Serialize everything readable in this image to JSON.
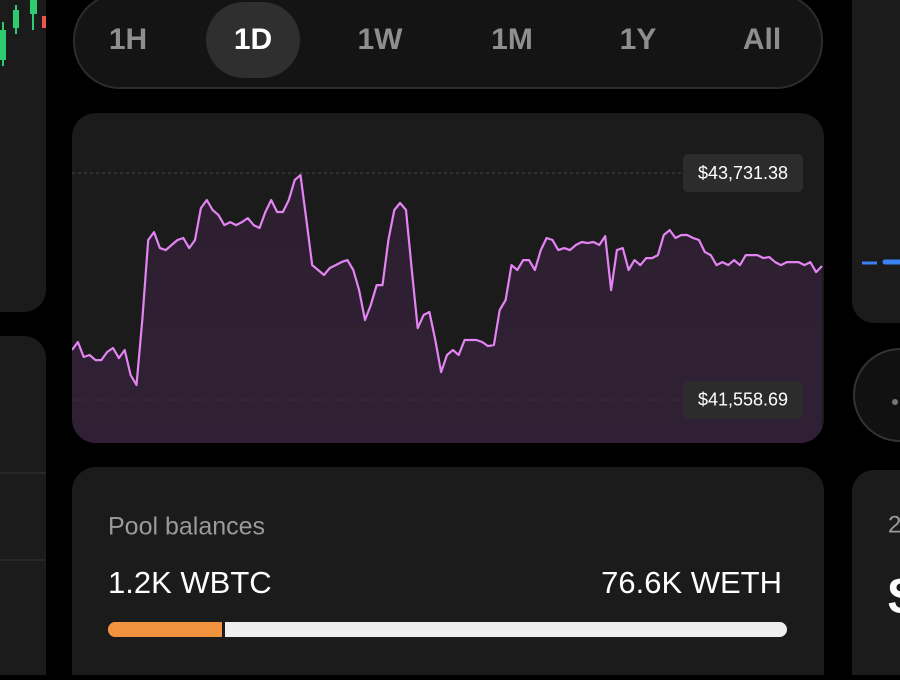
{
  "tabs": {
    "items": [
      "1H",
      "1D",
      "1W",
      "1M",
      "1Y",
      "All"
    ],
    "selected": 1
  },
  "chart_data": {
    "type": "line",
    "color": "#e384f2",
    "values": [
      42037,
      42114,
      41970,
      41989,
      41941,
      41941,
      42018,
      42056,
      41960,
      42037,
      41798,
      41702,
      42324,
      43090,
      43166,
      43013,
      42994,
      43042,
      43090,
      43109,
      43013,
      43090,
      43396,
      43473,
      43377,
      43329,
      43233,
      43262,
      43233,
      43262,
      43300,
      43233,
      43205,
      43358,
      43473,
      43358,
      43358,
      43473,
      43664,
      43712,
      43281,
      42850,
      42803,
      42755,
      42822,
      42850,
      42879,
      42898,
      42803,
      42611,
      42324,
      42468,
      42659,
      42659,
      43090,
      43377,
      43444,
      43377,
      42803,
      42247,
      42372,
      42401,
      42133,
      41826,
      41989,
      42037,
      41989,
      42133,
      42133,
      42133,
      42114,
      42075,
      42085,
      42420,
      42515,
      42850,
      42803,
      42898,
      42898,
      42803,
      42994,
      43109,
      43090,
      42994,
      43013,
      42994,
      43042,
      43071,
      43061,
      43071,
      43042,
      43128,
      42611,
      42994,
      43013,
      42803,
      42898,
      42850,
      42917,
      42917,
      42946,
      43138,
      43185,
      43109,
      43138,
      43138,
      43109,
      43090,
      42975,
      42946,
      42850,
      42879,
      42850,
      42898,
      42850,
      42946,
      42946,
      42946,
      42917,
      42927,
      42879,
      42850,
      42879,
      42879,
      42879,
      42850,
      42879,
      42783,
      42841
    ],
    "ylim": [
      41147,
      44306
    ],
    "yticks": [
      {
        "value": 43731.38,
        "label": "$43,731.38"
      },
      {
        "value": 41558.69,
        "label": "$41,558.69"
      }
    ]
  },
  "pool": {
    "title": "Pool balances",
    "left": "1.2K WBTC",
    "right": "76.6K WETH"
  },
  "side_card": {
    "label": "2",
    "value": "$"
  }
}
